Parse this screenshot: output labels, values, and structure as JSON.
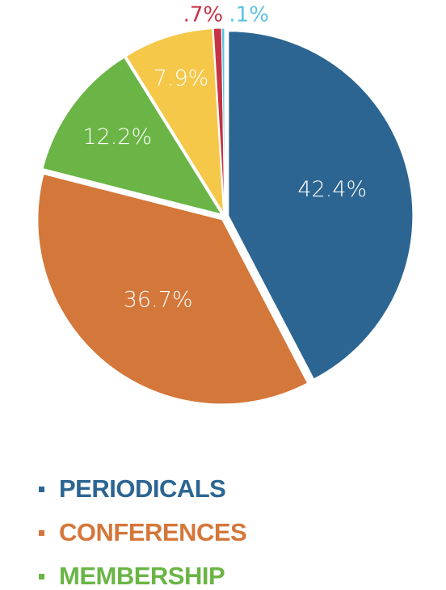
{
  "chart_data": {
    "type": "pie",
    "title": "",
    "slices": [
      {
        "name": "PERIODICALS",
        "value": 42.4,
        "label": "42.4%",
        "color": "#2c6592"
      },
      {
        "name": "CONFERENCES",
        "value": 36.7,
        "label": "36.7%",
        "color": "#d4773a"
      },
      {
        "name": "MEMBERSHIP",
        "value": 12.2,
        "label": "12.2%",
        "color": "#6ab545"
      },
      {
        "value": 7.9,
        "label": "7.9%",
        "color": "#f5c84a"
      },
      {
        "value": 0.7,
        "label": ".7%",
        "color": "#c63346"
      },
      {
        "value": 0.1,
        "label": ".1%",
        "color": "#5bc3e2"
      }
    ],
    "legend": {
      "position": "bottom-left",
      "items": [
        {
          "label": "PERIODICALS",
          "color": "#2c6592"
        },
        {
          "label": "CONFERENCES",
          "color": "#d4773a"
        },
        {
          "label": "MEMBERSHIP",
          "color": "#6ab545"
        }
      ]
    }
  }
}
